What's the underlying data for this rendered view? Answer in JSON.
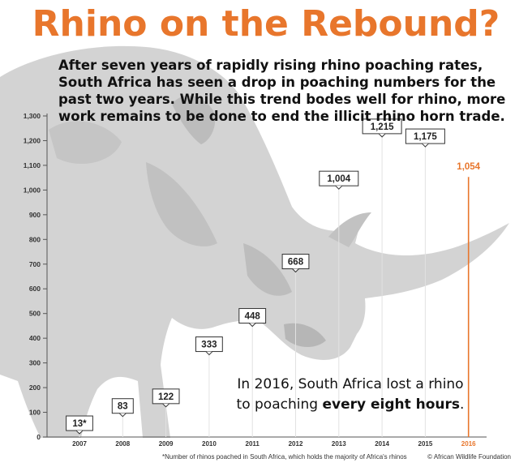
{
  "title": "Rhino on the Rebound?",
  "subtitle": "After seven years of rapidly rising rhino poaching rates, South Africa has seen a drop in poaching numbers for the past two years. While this trend bodes well for rhino, more work remains to be done to end the illicit rhino horn trade.",
  "note": {
    "line1": "In 2016, South Africa lost a rhino",
    "line2_prefix": "to poaching ",
    "line2_bold": "every eight hours",
    "line2_suffix": "."
  },
  "footnote": "*Number of rhinos poached in South Africa, which holds the majority of Africa's rhinos",
  "credit": "© African Wildlife Foundation",
  "colors": {
    "title": "#e8762c",
    "highlight": "#e8762c",
    "label_box": "#333333",
    "rhino": "#c9c9c9"
  },
  "chart_data": {
    "type": "line",
    "categories": [
      "2007",
      "2008",
      "2009",
      "2010",
      "2011",
      "2012",
      "2013",
      "2014",
      "2015",
      "2016"
    ],
    "values": [
      13,
      83,
      122,
      333,
      448,
      668,
      1004,
      1215,
      1175,
      1054
    ],
    "value_labels": [
      "13*",
      "83",
      "122",
      "333",
      "448",
      "668",
      "1,004",
      "1,215",
      "1,175",
      "1,054"
    ],
    "highlight_index": 9,
    "yticks": [
      0,
      100,
      200,
      300,
      400,
      500,
      600,
      700,
      800,
      900,
      1000,
      1100,
      1200,
      1300
    ],
    "ytick_labels": [
      "0",
      "100",
      "200",
      "300",
      "400",
      "500",
      "600",
      "700",
      "800",
      "900",
      "1,000",
      "1,100",
      "1,200",
      "1,300"
    ],
    "ylim": [
      0,
      1300
    ],
    "grid": false,
    "xlabel": "",
    "ylabel": ""
  }
}
